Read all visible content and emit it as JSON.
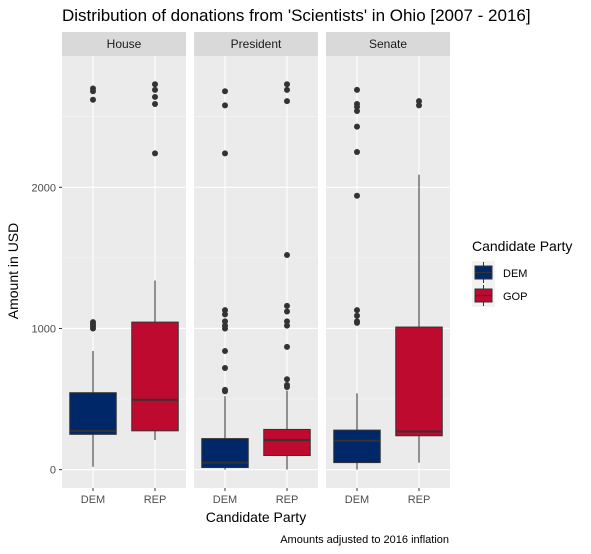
{
  "chart_data": {
    "type": "boxplot",
    "title": "Distribution of donations from 'Scientists' in Ohio [2007 - 2016]",
    "xlabel": "Candidate Party",
    "ylabel": "Amount in USD",
    "caption": "Amounts adjusted to 2016 inflation",
    "ylim": [
      -130,
      2930
    ],
    "y_ticks": [
      0,
      1000,
      2000
    ],
    "grid": true,
    "legend": {
      "title": "Candidate Party",
      "position": "right",
      "entries": [
        {
          "label": "DEM",
          "color": "#002868"
        },
        {
          "label": "GOP",
          "color": "#bf0a30"
        }
      ]
    },
    "panels": [
      {
        "name": "House",
        "boxes": [
          {
            "category": "DEM",
            "party": "DEM",
            "lower_whisker": 20,
            "q1": 250,
            "median": 275,
            "q3": 545,
            "upper_whisker": 840,
            "outliers": [
              1000,
              1015,
              1030,
              1045,
              2620,
              2680,
              2700
            ]
          },
          {
            "category": "REP",
            "party": "GOP",
            "lower_whisker": 210,
            "q1": 275,
            "median": 495,
            "q3": 1045,
            "upper_whisker": 1340,
            "outliers": [
              2240,
              2590,
              2640,
              2690,
              2730
            ]
          }
        ]
      },
      {
        "name": "President",
        "boxes": [
          {
            "category": "DEM",
            "party": "DEM",
            "lower_whisker": 0,
            "q1": 15,
            "median": 50,
            "q3": 220,
            "upper_whisker": 520,
            "outliers": [
              555,
              565,
              720,
              840,
              1000,
              1020,
              1050,
              1100,
              1130,
              2240,
              2580,
              2680
            ]
          },
          {
            "category": "REP",
            "party": "GOP",
            "lower_whisker": 0,
            "q1": 100,
            "median": 210,
            "q3": 285,
            "upper_whisker": 560,
            "outliers": [
              585,
              600,
              640,
              870,
              1020,
              1050,
              1120,
              1160,
              1520,
              2610,
              2690,
              2730
            ]
          }
        ]
      },
      {
        "name": "Senate",
        "boxes": [
          {
            "category": "DEM",
            "party": "DEM",
            "lower_whisker": 0,
            "q1": 50,
            "median": 205,
            "q3": 280,
            "upper_whisker": 540,
            "outliers": [
              1040,
              1050,
              1090,
              1130,
              1940,
              2250,
              2430,
              2540,
              2570,
              2590,
              2690
            ]
          },
          {
            "category": "REP",
            "party": "GOP",
            "lower_whisker": 50,
            "q1": 240,
            "median": 270,
            "q3": 1010,
            "upper_whisker": 2090,
            "outliers": [
              2580,
              2610
            ]
          }
        ]
      }
    ]
  }
}
